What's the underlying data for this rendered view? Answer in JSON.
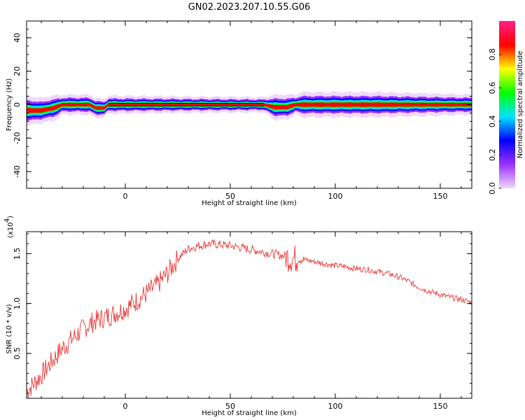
{
  "title": "GN02.2023.207.10.55.G06",
  "chart_data": [
    {
      "type": "heatmap",
      "xlabel": "Height of straight line (km)",
      "ylabel": "Frequency (Hz)",
      "xlim": [
        -47,
        165
      ],
      "ylim": [
        -50,
        50
      ],
      "x_ticks": [
        0,
        50,
        100,
        150
      ],
      "y_ticks": [
        -40,
        -20,
        0,
        20,
        40
      ],
      "grid": false,
      "colorbar": {
        "label": "Normalized spectral amplitude",
        "ticks": [
          "0.0",
          "0.2",
          "0.4",
          "0.6",
          "0.8"
        ],
        "tick_values": [
          0.0,
          0.2,
          0.4,
          0.6,
          0.8
        ],
        "range": [
          0,
          1
        ],
        "colormap": [
          "#f0d8f8",
          "#9b30ff",
          "#0000ff",
          "#00e5ff",
          "#00ff00",
          "#ffff00",
          "#ff0000",
          "#ff1f8c"
        ]
      },
      "ridge": [
        {
          "x": -47,
          "freq": -3.5,
          "halfwidth": 3.0
        },
        {
          "x": -40,
          "freq": -3.5,
          "halfwidth": 2.5
        },
        {
          "x": -34,
          "freq": -2.0,
          "halfwidth": 2.5
        },
        {
          "x": -30,
          "freq": 0.0,
          "halfwidth": 2.0
        },
        {
          "x": -17,
          "freq": 0.0,
          "halfwidth": 2.0
        },
        {
          "x": -14,
          "freq": -2.0,
          "halfwidth": 2.0
        },
        {
          "x": -10,
          "freq": -2.0,
          "halfwidth": 1.8
        },
        {
          "x": -8,
          "freq": 0.0,
          "halfwidth": 1.8
        },
        {
          "x": 66,
          "freq": 0.0,
          "halfwidth": 1.5
        },
        {
          "x": 71,
          "freq": -1.5,
          "halfwidth": 2.5
        },
        {
          "x": 77,
          "freq": -1.5,
          "halfwidth": 2.5
        },
        {
          "x": 81,
          "freq": 0.0,
          "halfwidth": 2.0
        },
        {
          "x": 84,
          "freq": 0.0,
          "halfwidth": 2.5
        },
        {
          "x": 120,
          "freq": 0.0,
          "halfwidth": 2.5
        },
        {
          "x": 165,
          "freq": 0.0,
          "halfwidth": 2.0
        }
      ]
    },
    {
      "type": "line",
      "xlabel": "Height of straight line (km)",
      "ylabel": "SNR (10 * v/v)",
      "y_multiplier": "(x10",
      "y_multiplier_exp": "4",
      "y_multiplier_close": ")",
      "xlim": [
        -47,
        165
      ],
      "ylim": [
        0.05,
        1.72
      ],
      "x_ticks": [
        0,
        50,
        100,
        150
      ],
      "y_ticks": [
        0.5,
        1.0,
        1.5
      ],
      "y_tick_labels": [
        "0.5",
        "1.0",
        "1.5"
      ],
      "grid": false,
      "line_color": "#e83a3a",
      "series": [
        {
          "x": [
            -47,
            -40,
            -35,
            -30,
            -25,
            -20,
            -15,
            -10,
            -5,
            0,
            5,
            10,
            15,
            20,
            25,
            30,
            35,
            40,
            45,
            50,
            55,
            60,
            65,
            70,
            75,
            80,
            85,
            90,
            95,
            100,
            105,
            110,
            115,
            120,
            125,
            130,
            135,
            140,
            145,
            150,
            155,
            160,
            165
          ],
          "values": [
            0.12,
            0.28,
            0.42,
            0.55,
            0.65,
            0.75,
            0.82,
            0.86,
            0.9,
            0.95,
            1.02,
            1.1,
            1.18,
            1.3,
            1.45,
            1.55,
            1.58,
            1.6,
            1.59,
            1.58,
            1.56,
            1.54,
            1.52,
            1.5,
            1.48,
            1.45,
            1.44,
            1.42,
            1.4,
            1.38,
            1.37,
            1.35,
            1.34,
            1.32,
            1.3,
            1.27,
            1.22,
            1.16,
            1.12,
            1.09,
            1.06,
            1.04,
            1.01
          ]
        }
      ]
    }
  ]
}
